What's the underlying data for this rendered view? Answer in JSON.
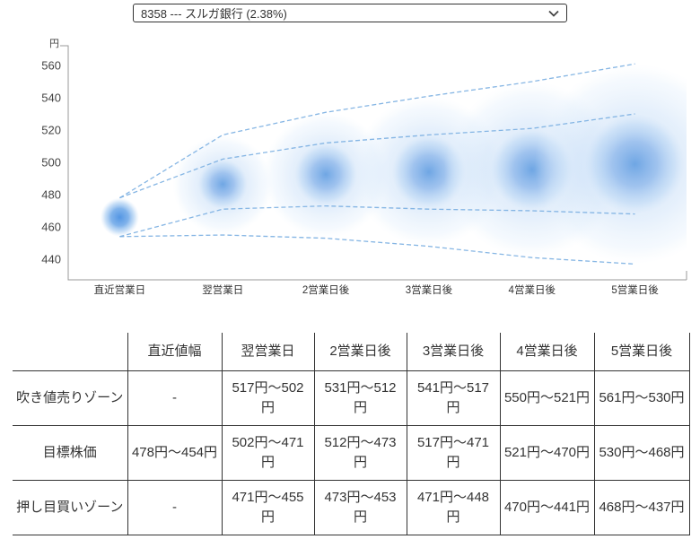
{
  "selector": {
    "value": "8358 --- スルガ銀行 (2.38%)"
  },
  "chart_data": {
    "type": "bubble",
    "title": "",
    "unit_label": "円",
    "categories": [
      "直近営業日",
      "翌営業日",
      "2営業日後",
      "3営業日後",
      "4営業日後",
      "5営業日後"
    ],
    "y_ticks": [
      560,
      540,
      520,
      500,
      480,
      460,
      440
    ],
    "ylim": [
      428,
      572
    ],
    "grid": false,
    "legend": "none",
    "bubbles": [
      {
        "category": "直近営業日",
        "outer": null,
        "inner": {
          "high": 478,
          "low": 454
        }
      },
      {
        "category": "翌営業日",
        "outer": {
          "high": 517,
          "low": 455
        },
        "inner": {
          "high": 502,
          "low": 471
        }
      },
      {
        "category": "2営業日後",
        "outer": {
          "high": 531,
          "low": 453
        },
        "inner": {
          "high": 512,
          "low": 473
        }
      },
      {
        "category": "3営業日後",
        "outer": {
          "high": 541,
          "low": 448
        },
        "inner": {
          "high": 517,
          "low": 471
        }
      },
      {
        "category": "4営業日後",
        "outer": {
          "high": 550,
          "low": 441
        },
        "inner": {
          "high": 521,
          "low": 470
        }
      },
      {
        "category": "5営業日後",
        "outer": {
          "high": 561,
          "low": 437
        },
        "inner": {
          "high": 530,
          "low": 468
        }
      }
    ],
    "lines": [
      {
        "name": "sell-zone-high",
        "values": [
          478,
          517,
          531,
          541,
          550,
          561
        ]
      },
      {
        "name": "target-high",
        "values": [
          478,
          502,
          512,
          517,
          521,
          530
        ]
      },
      {
        "name": "target-low",
        "values": [
          454,
          471,
          473,
          471,
          470,
          468
        ]
      },
      {
        "name": "buy-zone-low",
        "values": [
          454,
          455,
          453,
          448,
          441,
          437
        ]
      }
    ]
  },
  "table": {
    "headers": [
      "",
      "直近値幅",
      "翌営業日",
      "2営業日後",
      "3営業日後",
      "4営業日後",
      "5営業日後"
    ],
    "rows": [
      {
        "label": "吹き値売りゾーン",
        "cells": [
          "-",
          "517円〜502円",
          "531円〜512円",
          "541円〜517円",
          "550円〜521円",
          "561円〜530円"
        ]
      },
      {
        "label": "目標株価",
        "cells": [
          "478円〜454円",
          "502円〜471円",
          "512円〜473円",
          "517円〜471円",
          "521円〜470円",
          "530円〜468円"
        ]
      },
      {
        "label": "押し目買いゾーン",
        "cells": [
          "-",
          "471円〜455円",
          "473円〜453円",
          "471円〜448円",
          "470円〜441円",
          "468円〜437円"
        ]
      }
    ]
  },
  "colors": {
    "bubble_core": "#4a90e2",
    "bubble_mid": "#7cace8",
    "bubble_halo": "#d4e6f9",
    "dashed_line": "#79aee1",
    "axis": "#999999",
    "axis_text": "#444444",
    "table_border": "#333333",
    "text": "#333333"
  }
}
